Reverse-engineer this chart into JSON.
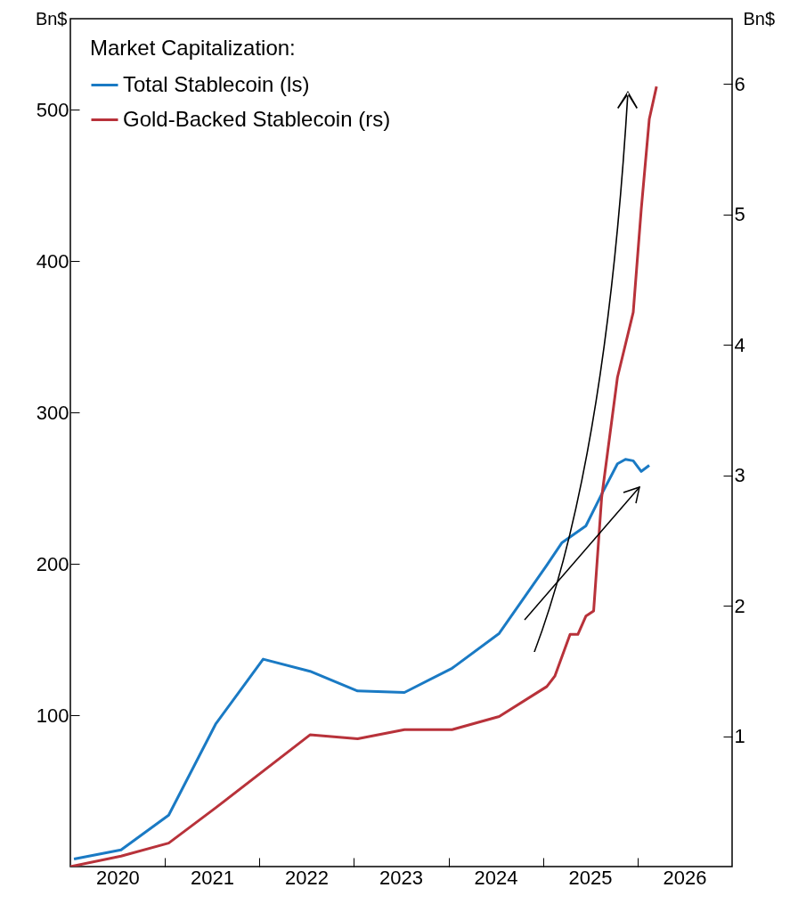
{
  "chart_data": {
    "type": "line",
    "legend_title": "Market Capitalization:",
    "legend": "top left",
    "ylabel": "Bn$",
    "y2label": "Bn$",
    "xlim": [
      "2020-01-01",
      "2027-01-01"
    ],
    "xticks": [
      {
        "value": "2020-07-01",
        "label": "2020"
      },
      {
        "value": "2021-01-01",
        "label": null
      },
      {
        "value": "2021-07-01",
        "label": "2021"
      },
      {
        "value": "2022-01-01",
        "label": null
      },
      {
        "value": "2022-07-01",
        "label": "2022"
      },
      {
        "value": "2023-01-01",
        "label": null
      },
      {
        "value": "2023-07-01",
        "label": "2023"
      },
      {
        "value": "2024-01-01",
        "label": null
      },
      {
        "value": "2024-07-01",
        "label": "2024"
      },
      {
        "value": "2025-01-01",
        "label": null
      },
      {
        "value": "2025-07-01",
        "label": "2025"
      },
      {
        "value": "2026-01-01",
        "label": null
      },
      {
        "value": "2026-07-01",
        "label": "2026"
      }
    ],
    "ylim": [
      0,
      560
    ],
    "yticks": [
      100,
      200,
      300,
      400,
      500
    ],
    "y2lim": [
      0,
      6.5
    ],
    "y2ticks": [
      1,
      2,
      3,
      4,
      5,
      6
    ],
    "series": [
      {
        "name": "Total Stablecoin (ls)",
        "color": "#1a7ac4",
        "x": [
          "2020-01-15",
          "2020-07-15",
          "2021-01-15",
          "2021-07-15",
          "2022-01-15",
          "2022-07-15",
          "2023-01-15",
          "2023-07-15",
          "2024-01-15",
          "2024-07-15",
          "2025-01-15",
          "2025-03-15",
          "2025-06-15",
          "2025-08-15",
          "2025-10-15",
          "2025-11-15",
          "2025-12-15",
          "2026-01-15",
          "2026-02-15"
        ],
        "values": [
          5,
          11,
          34,
          94,
          137,
          129,
          116,
          115,
          131,
          154,
          199,
          214,
          225,
          246,
          266,
          269,
          268,
          261,
          265
        ]
      },
      {
        "name": "Gold-Backed Stablecoin (rs)",
        "color": "#b8323a",
        "axis": "y2",
        "x": [
          "2020-01-01",
          "2020-07-15",
          "2021-01-15",
          "2021-07-15",
          "2022-07-15",
          "2023-01-15",
          "2023-07-15",
          "2024-01-15",
          "2024-07-15",
          "2025-01-15",
          "2025-02-15",
          "2025-04-15",
          "2025-05-15",
          "2025-06-15",
          "2025-07-15",
          "2025-08-15",
          "2025-10-15",
          "2025-12-15",
          "2026-01-15",
          "2026-02-15",
          "2026-03-15"
        ],
        "values": [
          0,
          0.08,
          0.18,
          0.45,
          1.01,
          0.98,
          1.05,
          1.05,
          1.15,
          1.38,
          1.46,
          1.78,
          1.78,
          1.92,
          1.96,
          2.83,
          3.75,
          4.25,
          5.04,
          5.73,
          5.98
        ]
      }
    ]
  }
}
